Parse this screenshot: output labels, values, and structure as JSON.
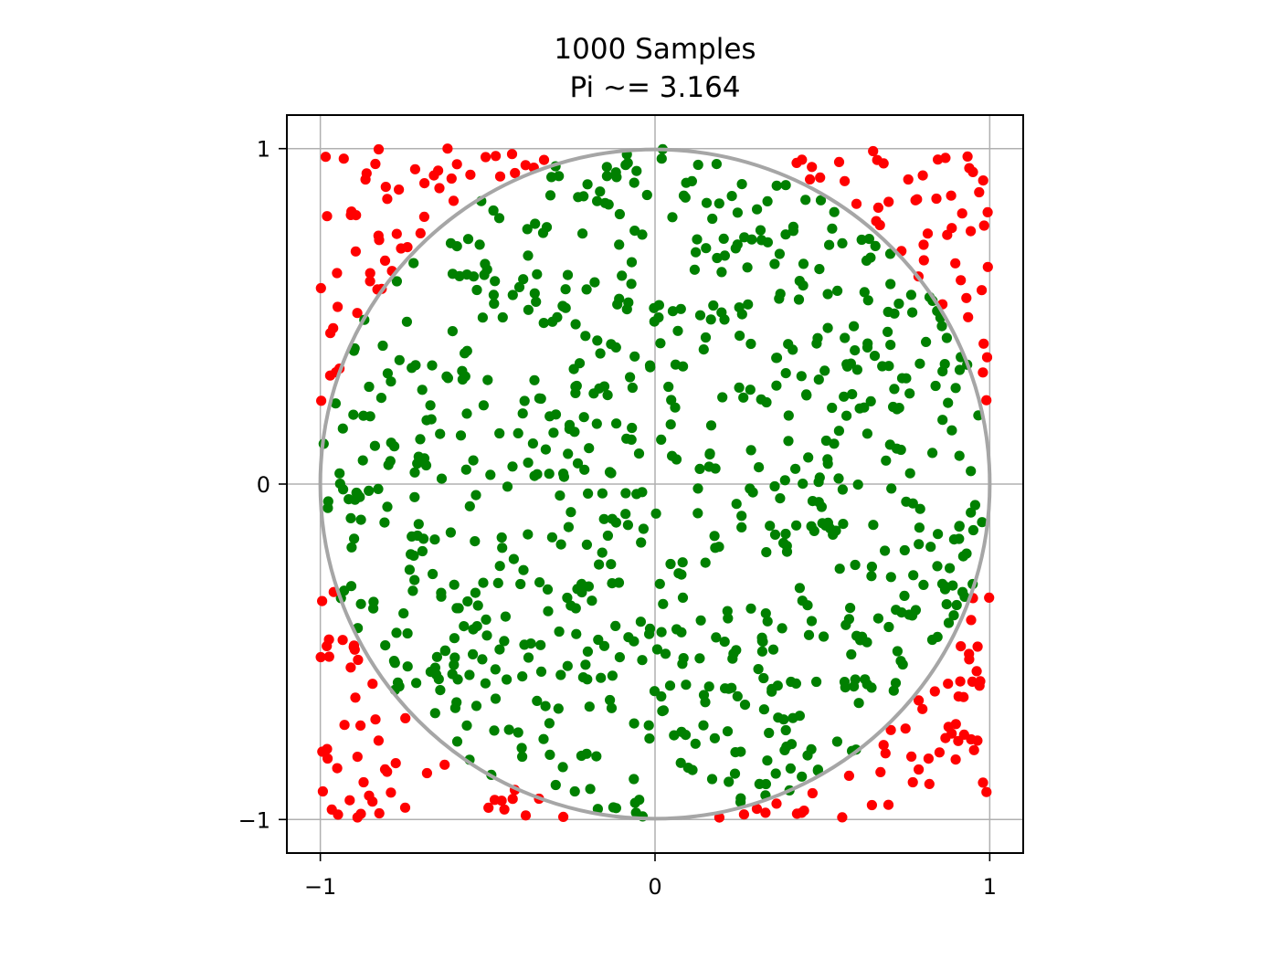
{
  "chart_data": {
    "type": "scatter",
    "title": "1000 Samples",
    "subtitle": "Pi ~= 3.164",
    "xlabel": "",
    "ylabel": "",
    "xlim": [
      -1.1,
      1.1
    ],
    "ylim": [
      -1.1,
      1.1
    ],
    "xticks": [
      -1,
      0,
      1
    ],
    "yticks": [
      -1,
      0,
      1
    ],
    "xtick_labels": [
      "−1",
      "0",
      "1"
    ],
    "ytick_labels": [
      "−1",
      "0",
      "1"
    ],
    "grid": true,
    "legend": "none",
    "sample_count": 1000,
    "inside_count": 791,
    "outside_count": 209,
    "colors": {
      "inside": "#008000",
      "outside": "#ff0000",
      "circle": "#a6a6a6",
      "grid": "#b0b0b0",
      "axes": "#000000"
    },
    "circle": {
      "center": [
        0,
        0
      ],
      "radius": 1
    },
    "series": [
      {
        "values": [
          [
            0.95,
            0.93
          ],
          [
            0.02,
            0.97
          ],
          [
            0.43,
            0.55
          ],
          [
            0.31,
            0.05
          ],
          [
            0.04,
            0.29
          ],
          [
            -0.26,
            0.09
          ],
          [
            -0.22,
            -0.81
          ],
          [
            -0.56,
            -0.35
          ],
          [
            0.46,
            -0.45
          ],
          [
            0.79,
            -0.13
          ],
          [
            -0.5,
            0.31
          ],
          [
            0.18,
            -0.19
          ],
          [
            -0.38,
            -0.15
          ],
          [
            -0.6,
            -0.3
          ],
          [
            0.69,
            0.07
          ]
        ]
      },
      {
        "values": [
          [
            -0.93,
            0.97
          ],
          [
            -0.62,
            1.0
          ],
          [
            0.55,
            0.96
          ],
          [
            0.8,
            0.92
          ],
          [
            -0.98,
            -0.79
          ],
          [
            -0.45,
            -0.97
          ],
          [
            0.33,
            -0.98
          ],
          [
            0.98,
            -0.89
          ],
          [
            -0.97,
            0.45
          ],
          [
            0.99,
            0.25
          ],
          [
            -0.99,
            0.12
          ],
          [
            0.95,
            -0.34
          ],
          [
            -0.88,
            -0.72
          ],
          [
            0.85,
            -0.8
          ],
          [
            -0.8,
            0.85
          ]
        ]
      }
    ]
  }
}
